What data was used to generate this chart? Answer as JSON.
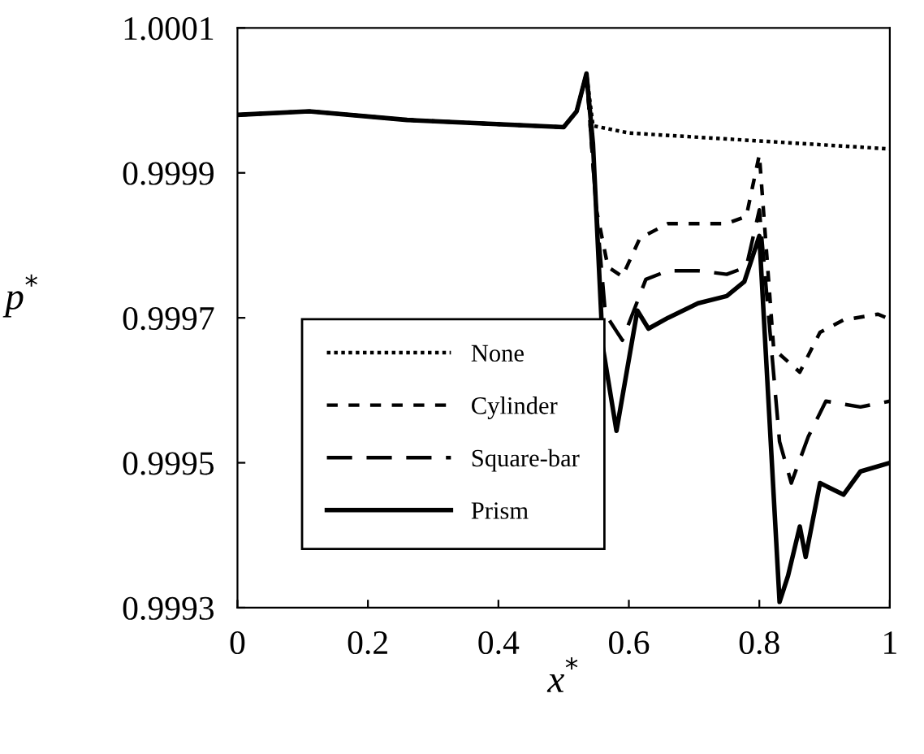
{
  "chart_data": {
    "type": "line",
    "xlabel": "x$^{*}$",
    "ylabel": "p$^{*}$",
    "xlim": [
      0,
      1
    ],
    "xticks": [
      0,
      0.2,
      0.4,
      0.6,
      0.8,
      1
    ],
    "ylim": [
      0.9993,
      1.0001
    ],
    "yticks": [
      0.9993,
      0.9995,
      0.9997,
      0.9999,
      1.0001
    ],
    "grid": false,
    "legend": "bottom left",
    "marker": "none",
    "series": [
      {
        "name": "None",
        "color": "#000000",
        "line_style": "dotted",
        "x": [
          0,
          0.11,
          0.26,
          0.5,
          0.52,
          0.535,
          0.545,
          0.6,
          0.8,
          1.0
        ],
        "values": [
          0.99998,
          0.999985,
          0.999973,
          0.999963,
          0.999985,
          1.000037,
          0.999965,
          0.999955,
          0.999944,
          0.999933
        ]
      },
      {
        "name": "Cylinder",
        "color": "#000000",
        "line_style": "dashed",
        "x": [
          0,
          0.11,
          0.26,
          0.5,
          0.52,
          0.535,
          0.55,
          0.568,
          0.59,
          0.617,
          0.66,
          0.75,
          0.78,
          0.8,
          0.822,
          0.862,
          0.893,
          0.929,
          0.982,
          1.0
        ],
        "values": [
          0.99998,
          0.999985,
          0.999973,
          0.999963,
          0.999985,
          1.000037,
          0.99985,
          0.99977,
          0.999757,
          0.99981,
          0.99983,
          0.99983,
          0.99984,
          0.999925,
          0.999657,
          0.999625,
          0.99968,
          0.999697,
          0.999705,
          0.999698
        ]
      },
      {
        "name": "Square-bar",
        "color": "#000000",
        "line_style": "dashed",
        "x": [
          0,
          0.11,
          0.26,
          0.5,
          0.52,
          0.535,
          0.55,
          0.564,
          0.59,
          0.626,
          0.66,
          0.706,
          0.75,
          0.78,
          0.8,
          0.831,
          0.849,
          0.875,
          0.902,
          0.955,
          1.0
        ],
        "values": [
          0.99998,
          0.999985,
          0.999973,
          0.999963,
          0.999985,
          1.000037,
          0.99985,
          0.999705,
          0.999669,
          0.999753,
          0.999765,
          0.999765,
          0.99976,
          0.99977,
          0.999849,
          0.999529,
          0.999472,
          0.999536,
          0.999585,
          0.999577,
          0.999585
        ]
      },
      {
        "name": "Prism",
        "color": "#000000",
        "line_style": "solid",
        "x": [
          0,
          0.11,
          0.26,
          0.5,
          0.52,
          0.535,
          0.545,
          0.56,
          0.581,
          0.613,
          0.63,
          0.66,
          0.706,
          0.75,
          0.777,
          0.8,
          0.831,
          0.844,
          0.862,
          0.871,
          0.893,
          0.929,
          0.955,
          1.0
        ],
        "values": [
          0.99998,
          0.999985,
          0.999973,
          0.999963,
          0.999985,
          1.000037,
          0.99994,
          0.99966,
          0.999544,
          0.99971,
          0.999685,
          0.9997,
          0.99972,
          0.99973,
          0.99975,
          0.999813,
          0.999308,
          0.999344,
          0.999412,
          0.99937,
          0.999472,
          0.999456,
          0.999488,
          0.9995
        ]
      }
    ]
  }
}
